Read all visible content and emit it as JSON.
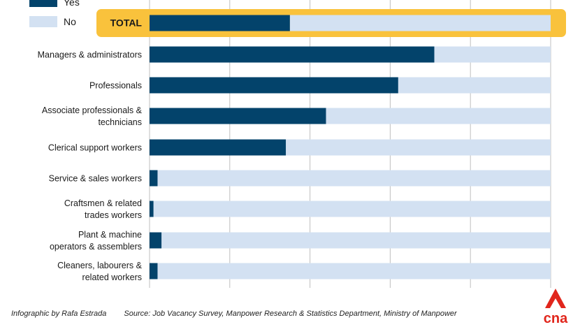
{
  "chart_data": {
    "type": "bar",
    "orientation": "horizontal",
    "stacked": true,
    "percent_stacked": true,
    "legend": {
      "placement": "top-left",
      "items": [
        {
          "label": "Yes",
          "color": "#03436b"
        },
        {
          "label": "No",
          "color": "#d3e1f2"
        }
      ]
    },
    "total_highlight_color": "#f9c23c",
    "categories": [
      "TOTAL",
      "Managers & administrators",
      "Professionals",
      "Associate professionals & technicians",
      "Clerical support workers",
      "Service & sales workers",
      "Craftsmen & related trades workers",
      "Plant & machine operators & assemblers",
      "Cleaners, labourers & related workers"
    ],
    "category_lines": [
      [
        "TOTAL"
      ],
      [
        "Managers & administrators"
      ],
      [
        "Professionals"
      ],
      [
        "Associate professionals &",
        "technicians"
      ],
      [
        "Clerical support workers"
      ],
      [
        "Service & sales workers"
      ],
      [
        "Craftsmen & related",
        "trades workers"
      ],
      [
        "Plant & machine",
        "operators & assemblers"
      ],
      [
        "Cleaners, labourers &",
        "related workers"
      ]
    ],
    "series": [
      {
        "name": "Yes",
        "values": [
          35,
          71,
          62,
          44,
          34,
          2,
          1,
          3,
          2
        ]
      },
      {
        "name": "No",
        "values": [
          65,
          29,
          38,
          56,
          66,
          98,
          99,
          97,
          98
        ]
      }
    ],
    "xlim": [
      0,
      100
    ],
    "grid": true
  },
  "footer": {
    "credit": "Infographic by Rafa Estrada",
    "source": "Source: Job Vacancy Survey, Manpower Research & Statistics Department, Ministry of Manpower"
  },
  "logo": {
    "text": "cna",
    "color": "#e1261c"
  }
}
